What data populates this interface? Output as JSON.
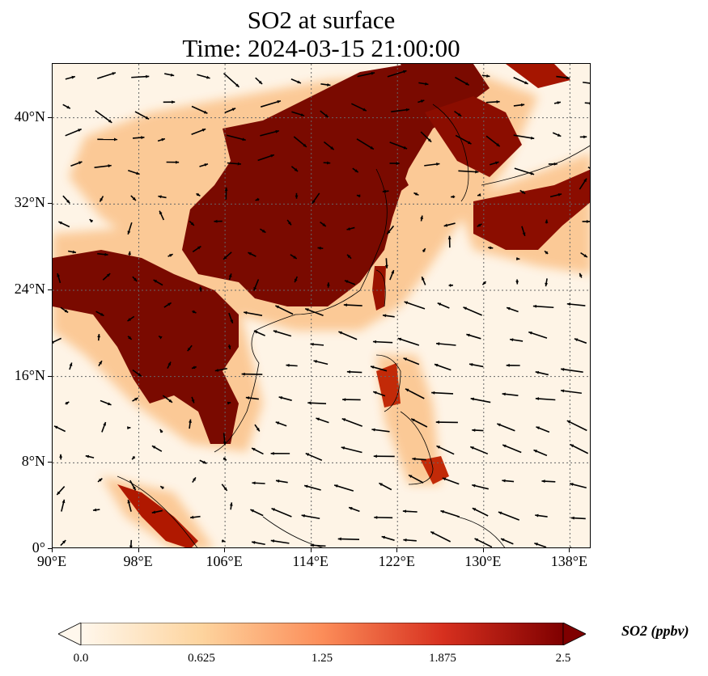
{
  "title": {
    "line1": "SO2 at surface",
    "line2": "Time: 2024-03-15 21:00:00"
  },
  "map": {
    "projection": "PlateCarree",
    "lon_range": [
      90,
      140
    ],
    "lat_range": [
      0,
      45
    ],
    "gridlines": "dotted",
    "coastlines": true,
    "vectors": "wind arrows"
  },
  "axes": {
    "x_ticks": [
      {
        "value": 90,
        "label": "90°E"
      },
      {
        "value": 98,
        "label": "98°E"
      },
      {
        "value": 106,
        "label": "106°E"
      },
      {
        "value": 114,
        "label": "114°E"
      },
      {
        "value": 122,
        "label": "122°E"
      },
      {
        "value": 130,
        "label": "130°E"
      },
      {
        "value": 138,
        "label": "138°E"
      }
    ],
    "y_ticks": [
      {
        "value": 0,
        "label": "0°"
      },
      {
        "value": 8,
        "label": "8°N"
      },
      {
        "value": 16,
        "label": "16°N"
      },
      {
        "value": 24,
        "label": "24°N"
      },
      {
        "value": 32,
        "label": "32°N"
      },
      {
        "value": 40,
        "label": "40°N"
      }
    ]
  },
  "colorbar": {
    "title": "SO2 (ppbv)",
    "min": 0.0,
    "max": 2.5,
    "extend": "both",
    "colormap": "OrRd",
    "ticks": [
      "0.0",
      "0.625",
      "1.25",
      "1.875",
      "2.5"
    ],
    "colors": [
      "#fff7ec",
      "#fdd49e",
      "#fc8d59",
      "#d7301f",
      "#7f0000"
    ]
  }
}
